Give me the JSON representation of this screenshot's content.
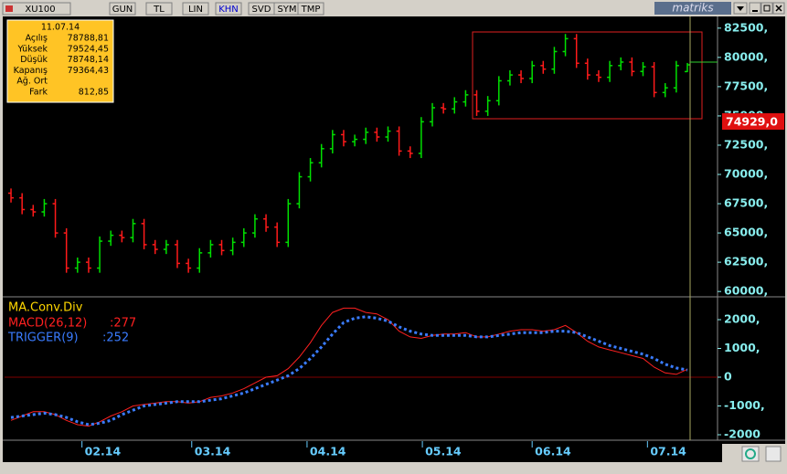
{
  "toolbar": {
    "symbol": "XU100",
    "buttons": [
      "GUN",
      "TL",
      "LIN",
      "KHN",
      "SVD",
      "SYM",
      "TMP"
    ],
    "brand": "matriks"
  },
  "info_box": {
    "date": "11.07.14",
    "rows": [
      [
        "Açılış",
        "78788,81"
      ],
      [
        "Yüksek",
        "79524,45"
      ],
      [
        "Düşük",
        "78748,14"
      ],
      [
        "Kapanış",
        "79364,43"
      ],
      [
        "Ağ. Ort"
      ],
      [
        "Fark",
        "812,85"
      ]
    ]
  },
  "price_label": "74929,0",
  "chart_data": [
    {
      "type": "candlestick",
      "up_color": "#00e000",
      "down_color": "#ff1a1a",
      "open": [
        68400,
        68000,
        67000,
        66800,
        67500,
        65000,
        62000,
        62500,
        62000,
        64300,
        64800,
        64600,
        65800,
        64000,
        63600,
        64000,
        62400,
        62000,
        63300,
        64000,
        63500,
        64200,
        65000,
        66200,
        65500,
        64200,
        67500,
        69800,
        71000,
        72200,
        73400,
        72800,
        73000,
        73600,
        73200,
        73700,
        72000,
        71800,
        74500,
        75700,
        75600,
        76200,
        76800,
        75400,
        76300,
        78000,
        78500,
        78200,
        79300,
        79000,
        80500,
        81600,
        79500,
        78500,
        78300,
        79300,
        79600,
        78800,
        79200,
        77000,
        77400,
        78788.81
      ],
      "high": [
        68800,
        68400,
        67400,
        67900,
        67900,
        65400,
        62900,
        62900,
        64700,
        65200,
        65200,
        66200,
        66200,
        64400,
        64400,
        64400,
        62800,
        63700,
        64400,
        64400,
        64600,
        65400,
        66600,
        66600,
        65900,
        67900,
        70200,
        71400,
        72600,
        73800,
        73800,
        73400,
        74000,
        74000,
        74100,
        74100,
        72400,
        74900,
        76100,
        76100,
        76600,
        77200,
        77200,
        76700,
        78400,
        78900,
        78900,
        79700,
        79700,
        80900,
        82000,
        82000,
        79900,
        78900,
        79700,
        80000,
        80000,
        79600,
        79600,
        77800,
        79700,
        79524.45
      ],
      "low": [
        67600,
        66600,
        66400,
        66400,
        64600,
        61600,
        61600,
        61600,
        61600,
        63900,
        64200,
        64200,
        63600,
        63200,
        63200,
        62000,
        61600,
        61600,
        62900,
        63100,
        63100,
        63800,
        64600,
        65100,
        63800,
        63800,
        67100,
        69400,
        70600,
        71800,
        72400,
        72400,
        72600,
        72800,
        72800,
        71600,
        71400,
        71400,
        74100,
        75200,
        75200,
        75800,
        75000,
        75000,
        75900,
        77600,
        77800,
        77800,
        78600,
        78600,
        80100,
        79100,
        78100,
        77900,
        77900,
        78900,
        78400,
        78400,
        76600,
        76600,
        77000,
        78748.14
      ],
      "close": [
        68000,
        67000,
        66800,
        67500,
        65000,
        62000,
        62500,
        62000,
        64300,
        64800,
        64600,
        65800,
        64000,
        63600,
        64000,
        62400,
        62000,
        63300,
        64000,
        63500,
        64200,
        65000,
        66200,
        65500,
        64200,
        67500,
        69800,
        71000,
        72200,
        73400,
        72800,
        73000,
        73600,
        73200,
        73700,
        72000,
        71800,
        74500,
        75700,
        75600,
        76200,
        76800,
        75400,
        76300,
        78000,
        78500,
        78200,
        79300,
        79000,
        80500,
        81600,
        79500,
        78500,
        78300,
        79300,
        79600,
        78800,
        79200,
        77000,
        77400,
        79300,
        79364.43
      ],
      "xlim": [
        -0.58,
        63.72
      ],
      "ylim": [
        59700,
        83500
      ],
      "yticks": [
        {
          "value": 82500,
          "label": "82500,"
        },
        {
          "value": 80000,
          "label": "80000,"
        },
        {
          "value": 77500,
          "label": "77500,"
        },
        {
          "value": 75000,
          "label": "75000,"
        },
        {
          "value": 72500,
          "label": "72500,"
        },
        {
          "value": 70000,
          "label": "70000,"
        },
        {
          "value": 67500,
          "label": "67500,"
        },
        {
          "value": 65000,
          "label": "65000,"
        },
        {
          "value": 62500,
          "label": "62500,"
        },
        {
          "value": 60000,
          "label": "60000,"
        }
      ]
    },
    {
      "type": "line",
      "title": "MA.Conv.Div",
      "title_color": "#ffd700",
      "series": [
        {
          "name": "MACD(26,12)",
          "last_value_label": ":277",
          "color": "#ff2020",
          "style": "solid",
          "values": [
            -1500,
            -1350,
            -1200,
            -1200,
            -1300,
            -1500,
            -1650,
            -1700,
            -1550,
            -1350,
            -1200,
            -1000,
            -950,
            -900,
            -850,
            -850,
            -900,
            -850,
            -700,
            -650,
            -550,
            -400,
            -200,
            0,
            50,
            300,
            700,
            1200,
            1800,
            2250,
            2400,
            2400,
            2250,
            2200,
            2000,
            1600,
            1400,
            1350,
            1450,
            1500,
            1500,
            1550,
            1400,
            1400,
            1500,
            1600,
            1650,
            1650,
            1600,
            1650,
            1800,
            1550,
            1250,
            1050,
            950,
            850,
            750,
            650,
            350,
            150,
            100,
            277
          ]
        },
        {
          "name": "TRIGGER(9)",
          "last_value_label": ":252",
          "color": "#3a7cff",
          "style": "dotted",
          "values": [
            -1400,
            -1350,
            -1300,
            -1250,
            -1300,
            -1400,
            -1550,
            -1650,
            -1600,
            -1500,
            -1300,
            -1150,
            -1000,
            -950,
            -900,
            -850,
            -850,
            -850,
            -800,
            -750,
            -650,
            -550,
            -400,
            -250,
            -100,
            50,
            300,
            650,
            1050,
            1500,
            1900,
            2050,
            2100,
            2050,
            1950,
            1750,
            1600,
            1500,
            1450,
            1450,
            1450,
            1450,
            1400,
            1400,
            1450,
            1500,
            1550,
            1550,
            1550,
            1600,
            1600,
            1550,
            1400,
            1250,
            1100,
            1000,
            900,
            800,
            650,
            450,
            320,
            252
          ]
        }
      ],
      "xlim": [
        -0.58,
        63.72
      ],
      "ylim": [
        -2190,
        2730
      ],
      "yticks": [
        {
          "value": 2000,
          "label": "2000,"
        },
        {
          "value": 1000,
          "label": "1000,"
        },
        0,
        {
          "value": -1000,
          "label": "-1000,"
        },
        -2000
      ],
      "xticks": [
        {
          "value": 6.4,
          "label": "02.14"
        },
        {
          "value": 16.3,
          "label": "03.14"
        },
        {
          "value": 26.7,
          "label": "04.14"
        },
        {
          "value": 37.1,
          "label": "05.14"
        },
        {
          "value": 47.0,
          "label": "06.14"
        },
        {
          "value": 57.4,
          "label": "07.14"
        }
      ]
    }
  ]
}
